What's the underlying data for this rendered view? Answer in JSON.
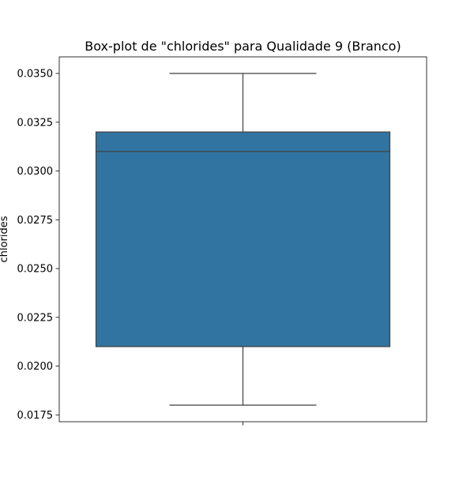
{
  "chart_data": {
    "type": "box",
    "title": "Box-plot de \"chlorides\" para Qualidade 9 (Branco)",
    "xlabel": "",
    "ylabel": "chlorides",
    "ylim": [
      0.01715,
      0.03585
    ],
    "yticks": [
      {
        "value": 0.0175,
        "label": "0.0175"
      },
      {
        "value": 0.02,
        "label": "0.0200"
      },
      {
        "value": 0.0225,
        "label": "0.0225"
      },
      {
        "value": 0.025,
        "label": "0.0250"
      },
      {
        "value": 0.0275,
        "label": "0.0275"
      },
      {
        "value": 0.03,
        "label": "0.0300"
      },
      {
        "value": 0.0325,
        "label": "0.0325"
      },
      {
        "value": 0.035,
        "label": "0.0350"
      }
    ],
    "grid": false,
    "box": {
      "whisker_low": 0.018,
      "q1": 0.021,
      "median": 0.031,
      "q3": 0.032,
      "whisker_high": 0.035
    },
    "colors": {
      "box_fill": "#3274a1",
      "line": "#3f3f3f",
      "axes": "#000000"
    }
  }
}
